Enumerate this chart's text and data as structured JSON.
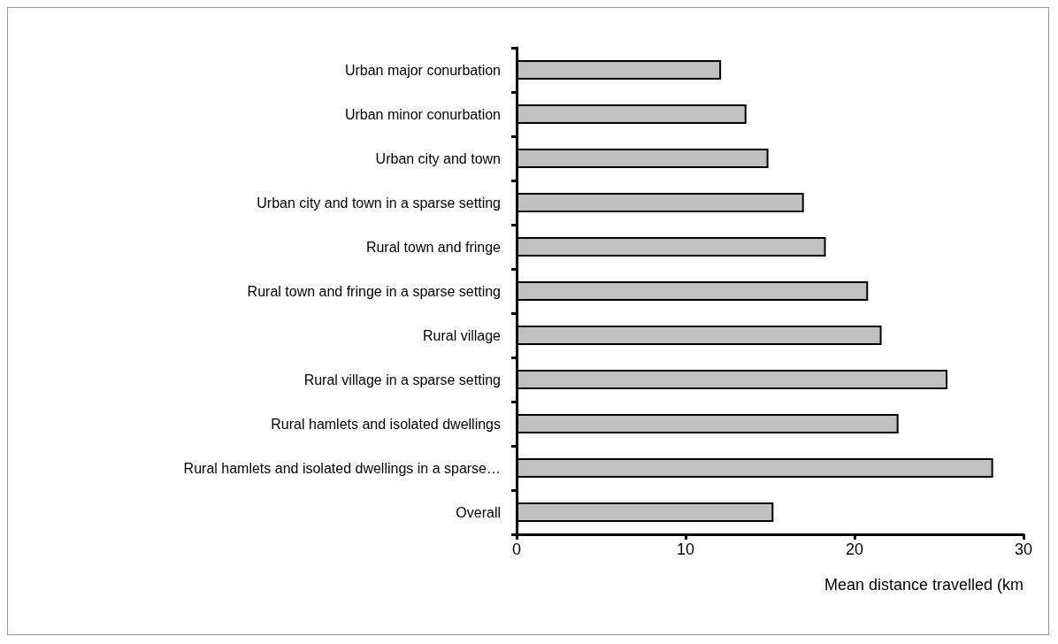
{
  "chart_data": {
    "type": "bar",
    "orientation": "horizontal",
    "xlabel": "Mean distance travelled (km",
    "categories": [
      "Urban major conurbation",
      "Urban minor conurbation",
      "Urban city and town",
      "Urban city and town in a sparse setting",
      "Rural town and fringe",
      "Rural town and fringe in a sparse setting",
      "Rural village",
      "Rural village in a sparse setting",
      "Rural hamlets and isolated dwellings",
      "Rural hamlets and isolated dwellings in a sparse…",
      "Overall"
    ],
    "values": [
      12.1,
      13.6,
      14.9,
      17.0,
      18.3,
      20.8,
      21.6,
      25.5,
      22.6,
      28.2,
      15.2
    ],
    "color": "#c0c0c0",
    "xlim": [
      0,
      30
    ],
    "xticks": [
      0,
      10,
      20,
      30
    ]
  }
}
